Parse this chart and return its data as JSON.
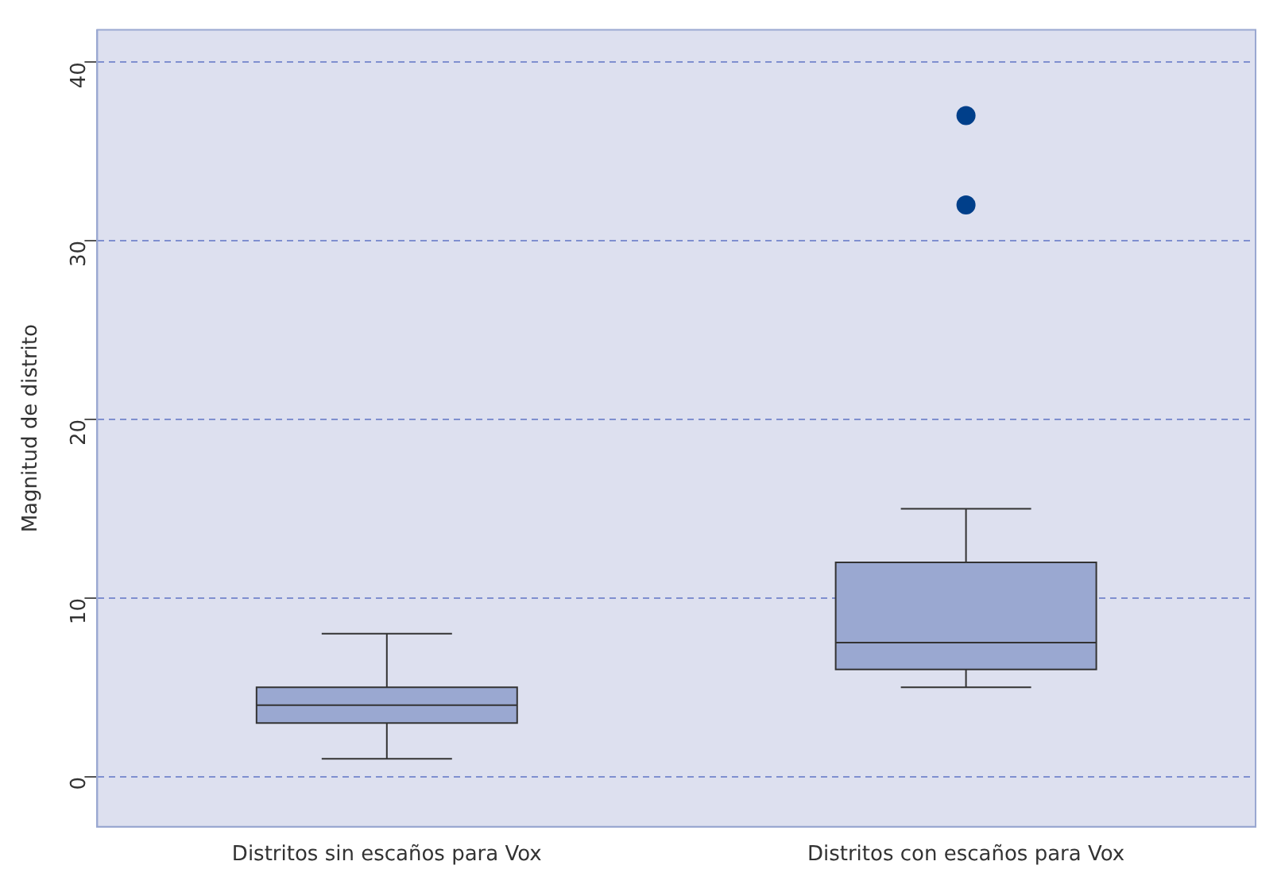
{
  "chart_data": {
    "type": "box",
    "ylabel": "Magnitud de distrito",
    "categories": [
      "Distritos sin escaños para Vox",
      "Distritos con escaños para Vox"
    ],
    "series": [
      {
        "color": "#9aa8d1",
        "boxes": [
          {
            "low": 1,
            "q1": 3,
            "median": 4,
            "q3": 5,
            "high": 8
          },
          {
            "low": 5,
            "q1": 6,
            "median": 7.5,
            "q3": 12,
            "high": 15
          }
        ]
      },
      {
        "type": "scatter",
        "color": "#003f8a",
        "x": [
          "Distritos con escaños para Vox",
          "Distritos con escaños para Vox"
        ],
        "values": [
          32,
          37
        ]
      }
    ],
    "ylim": [
      -2.8,
      41.8
    ],
    "yticks": [
      0,
      10,
      20,
      30,
      40
    ],
    "grid": "y"
  }
}
